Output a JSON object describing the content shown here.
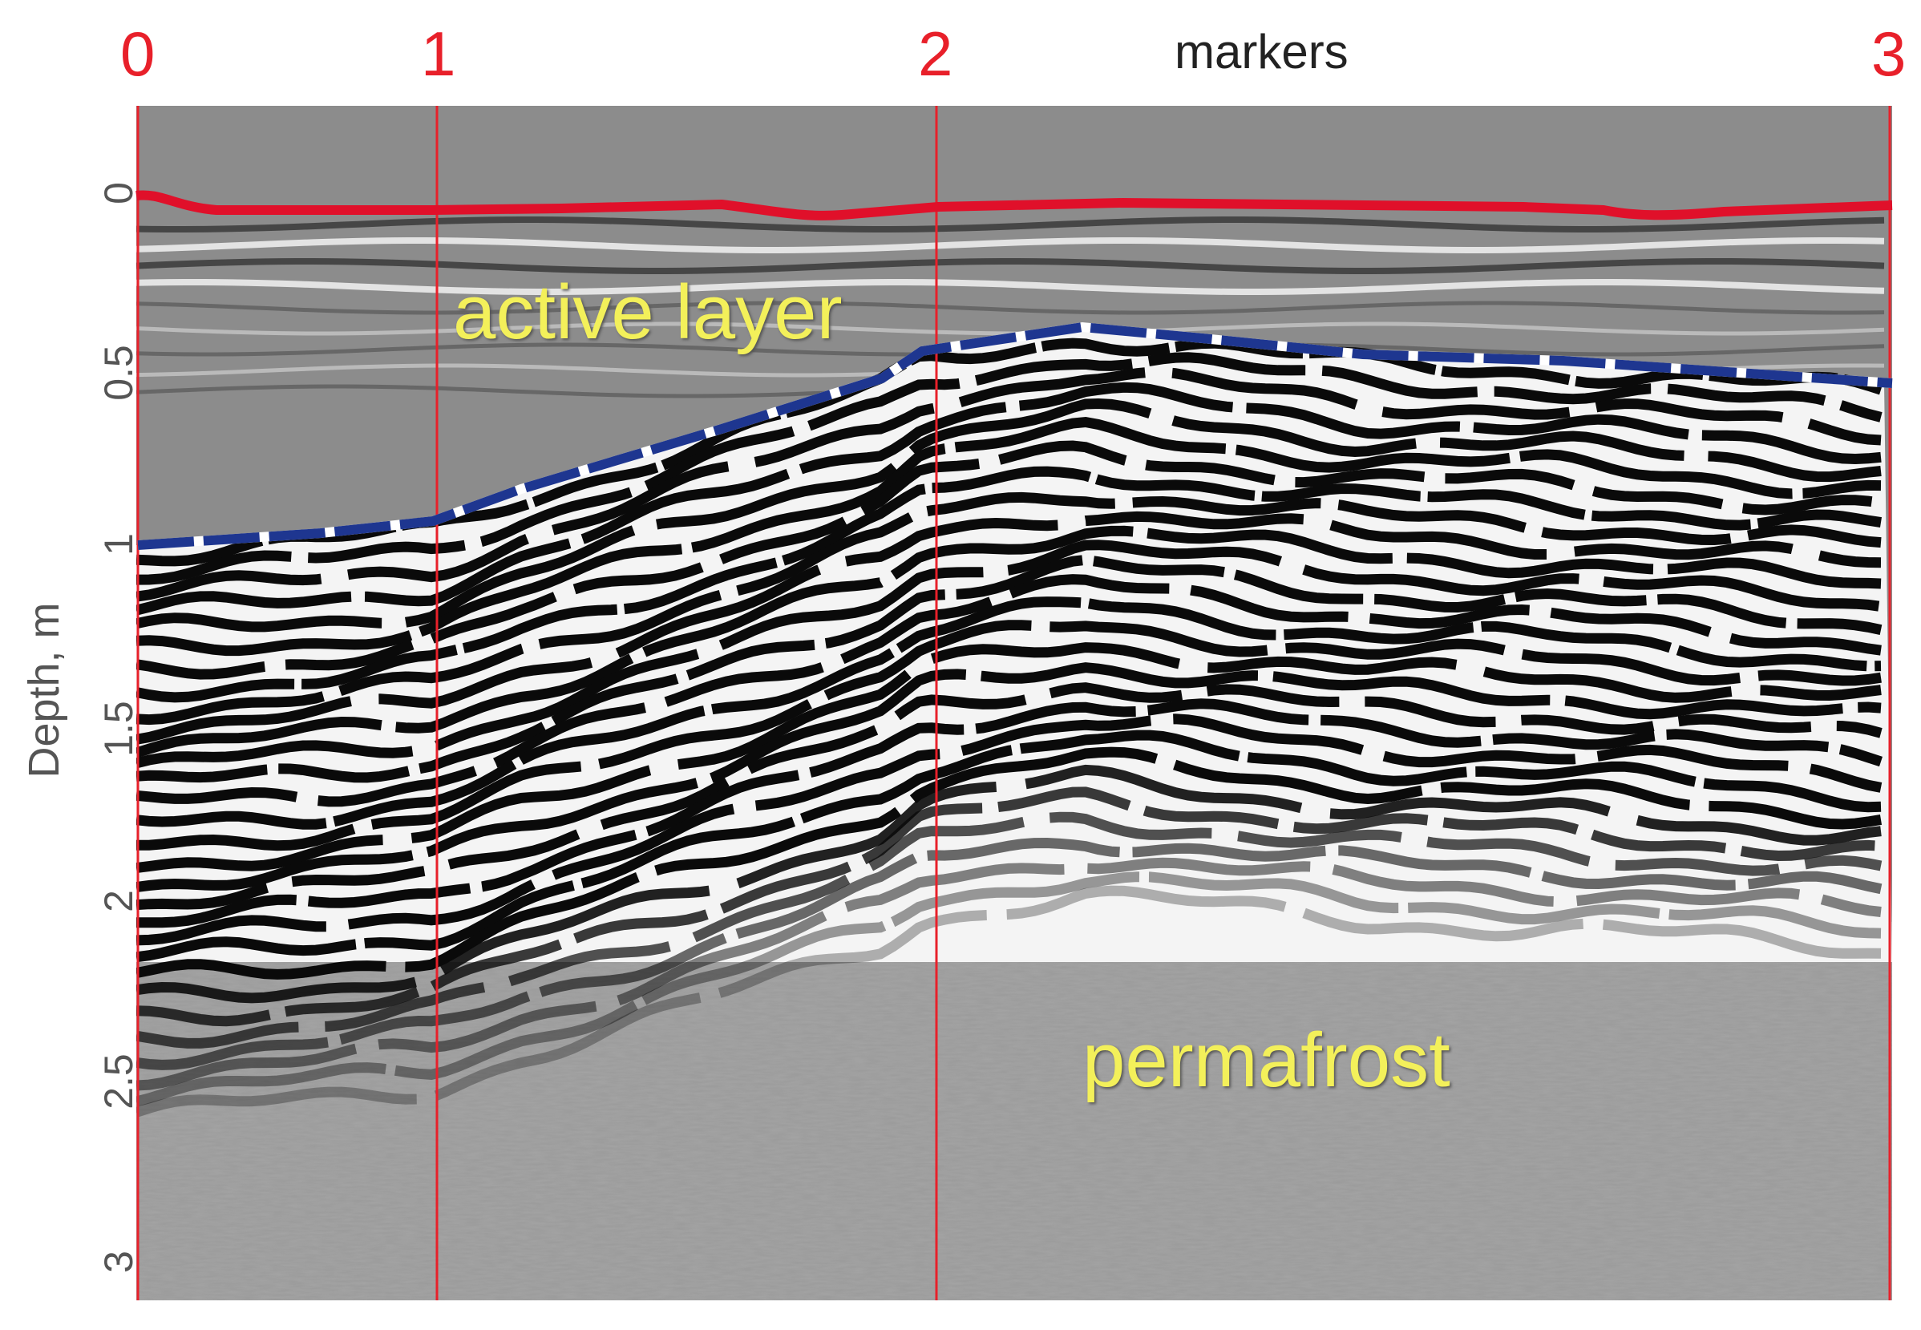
{
  "markers_title": "markers",
  "markers": [
    "0",
    "1",
    "2",
    "3"
  ],
  "depth_axis": {
    "title": "Depth, m",
    "ticks": [
      "0",
      "0.5",
      "1",
      "1.5",
      "2",
      "2.5",
      "3"
    ]
  },
  "labels": {
    "active_layer": "active layer",
    "permafrost": "permafrost"
  },
  "colors": {
    "marker": "#e8202a",
    "surface_line": "#e0102a",
    "boundary_line": "#1e3690",
    "label_text": "#f3f05a"
  }
}
